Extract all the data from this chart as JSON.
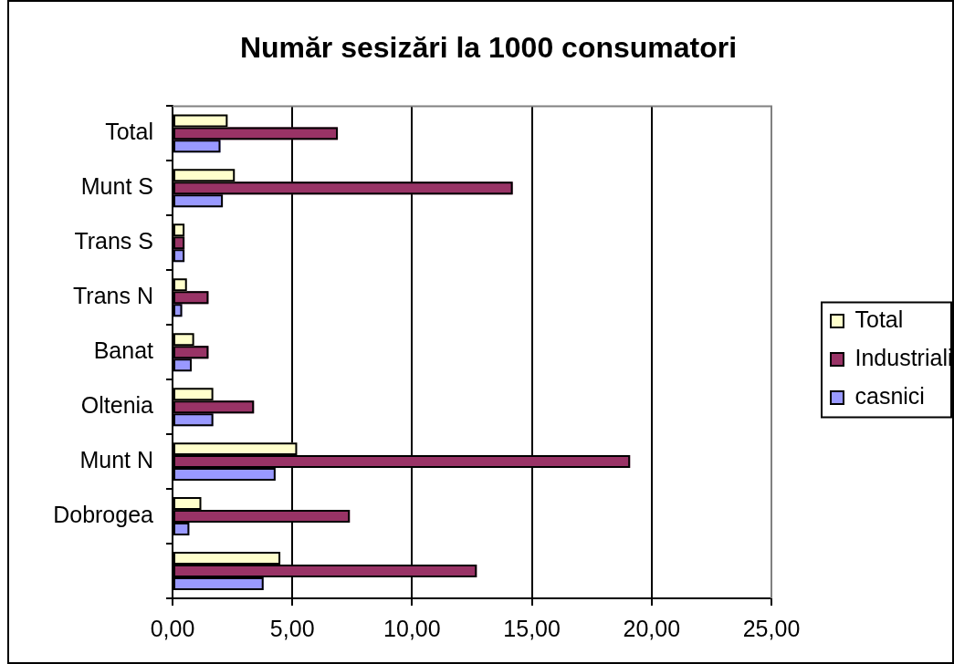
{
  "chart_data": {
    "type": "bar",
    "orientation": "horizontal",
    "title": "Număr sesizări la 1000 consumatori",
    "categories": [
      "Total",
      "Munt S",
      "Trans S",
      "Trans N",
      "Banat",
      "Oltenia",
      "Munt N",
      "Dobrogea",
      null
    ],
    "series": [
      {
        "name": "Total",
        "color": "#ffffcc",
        "values": [
          2.3,
          2.6,
          0.5,
          0.6,
          0.9,
          1.7,
          5.2,
          1.2,
          4.5
        ]
      },
      {
        "name": "Industriali",
        "color": "#993366",
        "values": [
          6.9,
          14.2,
          0.5,
          1.5,
          1.5,
          3.4,
          19.1,
          7.4,
          12.7
        ]
      },
      {
        "name": "casnici",
        "color": "#9999ff",
        "values": [
          2.0,
          2.1,
          0.5,
          0.4,
          0.8,
          1.7,
          4.3,
          0.7,
          3.8
        ]
      }
    ],
    "xlim": [
      0,
      25
    ],
    "xticks": [
      {
        "value": 0,
        "label": "0,00"
      },
      {
        "value": 5,
        "label": "5,00"
      },
      {
        "value": 10,
        "label": "10,00"
      },
      {
        "value": 15,
        "label": "15,00"
      },
      {
        "value": 20,
        "label": "20,00"
      },
      {
        "value": 25,
        "label": "25,00"
      }
    ],
    "grid": "x",
    "legend": "right"
  }
}
